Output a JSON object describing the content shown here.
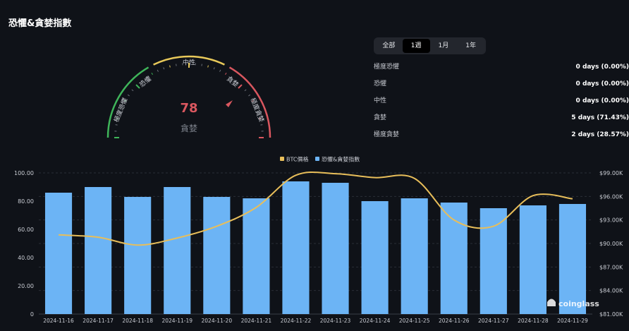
{
  "page": {
    "title": "恐懼&貪婪指數"
  },
  "gauge": {
    "value": "78",
    "label": "貪婪",
    "zones": [
      "極度恐懼",
      "恐懼",
      "中性",
      "貪婪",
      "極度貪婪"
    ]
  },
  "tabs": [
    {
      "label": "全部",
      "active": false
    },
    {
      "label": "1週",
      "active": true
    },
    {
      "label": "1月",
      "active": false
    },
    {
      "label": "1年",
      "active": false
    }
  ],
  "stats": [
    {
      "label": "極度恐懼",
      "value": "0 days (0.00%)"
    },
    {
      "label": "恐懼",
      "value": "0 days (0.00%)"
    },
    {
      "label": "中性",
      "value": "0 days (0.00%)"
    },
    {
      "label": "貪婪",
      "value": "5 days (71.43%)"
    },
    {
      "label": "極度貪婪",
      "value": "2 days (28.57%)"
    }
  ],
  "colors": {
    "bar": "#6cb4f5",
    "line": "#e8be5a",
    "fear": "#3fb55a",
    "neutral": "#e8c95a",
    "greed": "#d9575f"
  },
  "watermark": "coinglass",
  "chart_data": {
    "type": "bar",
    "categories": [
      "2024-11-16",
      "2024-11-17",
      "2024-11-18",
      "2024-11-19",
      "2024-11-20",
      "2024-11-21",
      "2024-11-22",
      "2024-11-23",
      "2024-11-24",
      "2024-11-25",
      "2024-11-26",
      "2024-11-27",
      "2024-11-28",
      "2024-11-29"
    ],
    "series": [
      {
        "name": "恐懼&貪婪指數",
        "type": "bar",
        "axis": "left",
        "values": [
          86,
          90,
          83,
          90,
          83,
          82,
          94,
          93,
          80,
          82,
          79,
          75,
          77,
          78
        ]
      },
      {
        "name": "BTC價格",
        "type": "line",
        "axis": "right",
        "values": [
          91100,
          90800,
          89800,
          90700,
          92200,
          94600,
          98700,
          98900,
          98400,
          98300,
          93000,
          92200,
          96100,
          95700
        ]
      }
    ],
    "left_axis": {
      "ticks": [
        "100.00",
        "80.00",
        "60.00",
        "40.00",
        "20.00",
        "0"
      ],
      "range": [
        0,
        100
      ]
    },
    "right_axis": {
      "ticks": [
        "$99.00K",
        "$96.00K",
        "$93.00K",
        "$90.00K",
        "$87.00K",
        "$84.00K",
        "$81.00K"
      ],
      "range": [
        81000,
        99000
      ]
    },
    "legend": "top-center",
    "grid": true
  }
}
